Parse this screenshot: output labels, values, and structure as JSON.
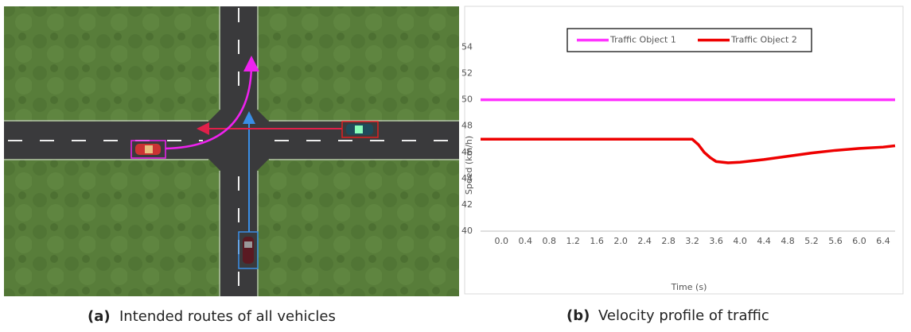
{
  "captions": [
    {
      "label": "(a)",
      "text": "Intended routes of all vehicles"
    },
    {
      "label": "(b)",
      "text": "Velocity profile of traffic"
    }
  ],
  "chart_data": {
    "type": "line",
    "x_label": "Time (s)",
    "y_label": "Speed (km/h)",
    "x": [
      -0.35,
      3.2,
      3.3,
      3.4,
      3.5,
      3.6,
      3.8,
      4.0,
      4.4,
      4.8,
      5.2,
      5.6,
      6.0,
      6.4,
      6.6
    ],
    "series": [
      {
        "name": "Traffic Object 1",
        "color": "#ff33ff",
        "values": [
          50,
          50,
          50,
          50,
          50,
          50,
          50,
          50,
          50,
          50,
          50,
          50,
          50,
          50,
          50
        ]
      },
      {
        "name": "Traffic Object 2",
        "color": "#ee0000",
        "values": [
          47,
          47,
          46.6,
          46.0,
          45.6,
          45.3,
          45.2,
          45.25,
          45.45,
          45.7,
          45.95,
          46.15,
          46.3,
          46.4,
          46.5
        ]
      }
    ],
    "xlim": [
      -0.35,
      6.6
    ],
    "xticks": [
      {
        "value": 0,
        "label": "0.0"
      },
      0.4,
      0.8,
      1.2,
      1.6,
      {
        "value": 2,
        "label": "2.0"
      },
      2.4,
      2.8,
      3.2,
      3.6,
      {
        "value": 4,
        "label": "4.0"
      },
      4.4,
      4.8,
      5.2,
      5.6,
      {
        "value": 6,
        "label": "6.0"
      },
      6.4
    ],
    "ylim": [
      40,
      55
    ],
    "yticks": [
      40,
      42,
      44,
      46,
      48,
      50,
      52,
      54
    ],
    "grid": false,
    "legend": "top"
  }
}
